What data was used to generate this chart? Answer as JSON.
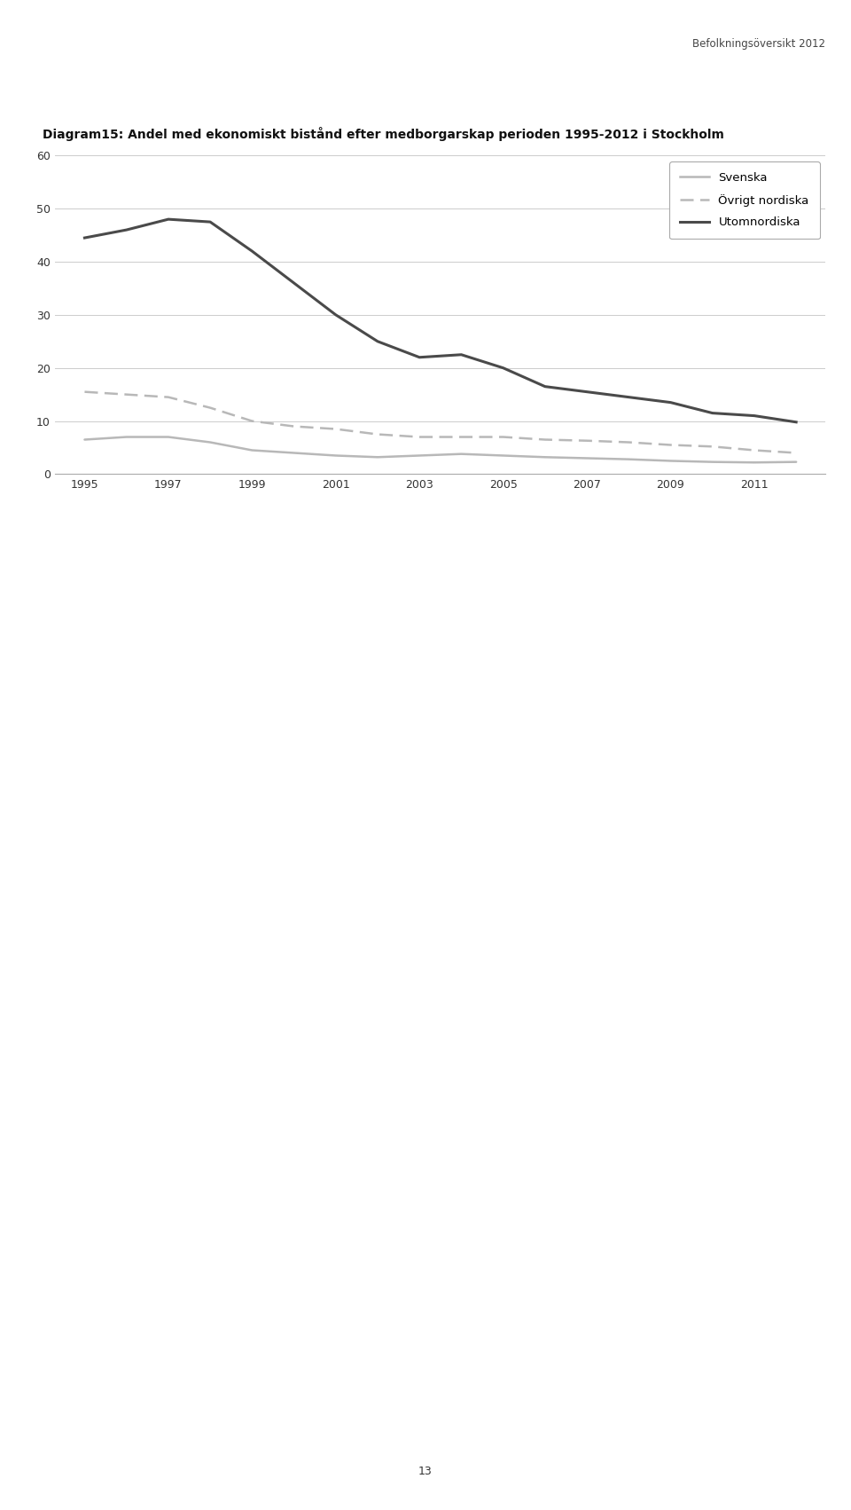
{
  "title": "Diagram15: Andel med ekonomiskt bistånd efter medborgarskap perioden 1995-2012 i Stockholm",
  "header": "Befolkningsöversikt 2012",
  "years": [
    1995,
    1996,
    1997,
    1998,
    1999,
    2000,
    2001,
    2002,
    2003,
    2004,
    2005,
    2006,
    2007,
    2008,
    2009,
    2010,
    2011,
    2012
  ],
  "svenska": [
    6.5,
    7.0,
    7.0,
    6.0,
    4.5,
    4.0,
    3.5,
    3.2,
    3.5,
    3.8,
    3.5,
    3.2,
    3.0,
    2.8,
    2.5,
    2.3,
    2.2,
    2.3
  ],
  "ovrigt_nordiska": [
    15.5,
    15.0,
    14.5,
    12.5,
    10.0,
    9.0,
    8.5,
    7.5,
    7.0,
    7.0,
    7.0,
    6.5,
    6.3,
    6.0,
    5.5,
    5.2,
    4.5,
    4.0
  ],
  "utomnordiska": [
    44.5,
    46.0,
    48.0,
    47.5,
    42.0,
    36.0,
    30.0,
    25.0,
    22.0,
    22.5,
    20.0,
    16.5,
    15.5,
    14.5,
    13.5,
    11.5,
    11.0,
    9.8
  ],
  "ylim": [
    0,
    60
  ],
  "yticks": [
    0,
    10,
    20,
    30,
    40,
    50,
    60
  ],
  "xticks": [
    1995,
    1997,
    1999,
    2001,
    2003,
    2005,
    2007,
    2009,
    2011
  ],
  "svenska_color": "#b8b8b8",
  "ovrigt_color": "#b8b8b8",
  "utomnordiska_color": "#4a4a4a",
  "legend_svenska": "Svenska",
  "legend_ovrigt": "Övrigt nordiska",
  "legend_utomnordiska": "Utomnordiska",
  "page_number": "13",
  "header_line_color": "#c8a050",
  "background_color": "#ffffff"
}
